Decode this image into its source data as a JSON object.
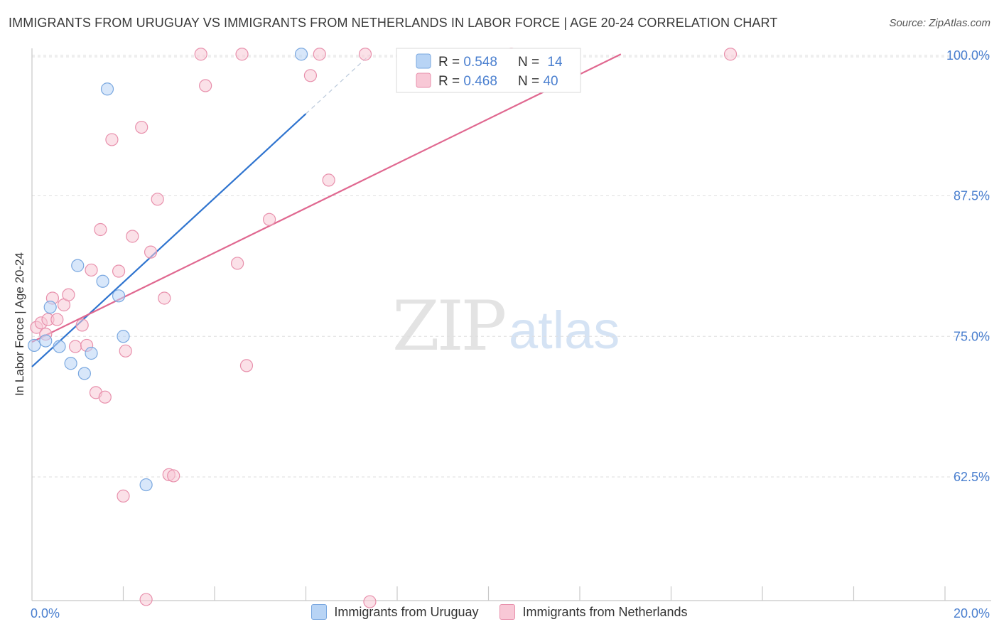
{
  "header": {
    "title": "IMMIGRANTS FROM URUGUAY VS IMMIGRANTS FROM NETHERLANDS IN LABOR FORCE | AGE 20-24 CORRELATION CHART",
    "source": "Source: ZipAtlas.com"
  },
  "watermark": {
    "zip": "ZIP",
    "atlas": "atlas"
  },
  "colors": {
    "uruguay_fill": "#b8d4f5",
    "uruguay_stroke": "#7aa8e0",
    "uruguay_line": "#2f74cf",
    "netherlands_fill": "#f8c8d6",
    "netherlands_stroke": "#e890ac",
    "netherlands_line": "#e06890",
    "axis_text": "#4a7fcf"
  },
  "legend": {
    "rows": [
      {
        "r_label": "R = ",
        "r_value": "0.548",
        "n_label": "N = ",
        "n_value": "14"
      },
      {
        "r_label": "R = ",
        "r_value": "0.468",
        "n_label": "N = ",
        "n_value": "40"
      }
    ]
  },
  "chart_data": {
    "type": "scatter",
    "title": "IMMIGRANTS FROM URUGUAY VS IMMIGRANTS FROM NETHERLANDS IN LABOR FORCE | AGE 20-24 CORRELATION CHART",
    "xlabel": "",
    "ylabel": "In Labor Force | Age 20-24",
    "xlim": [
      0,
      20
    ],
    "ylim": [
      51.5,
      101
    ],
    "x_tick_labels": [
      "0.0%",
      "20.0%"
    ],
    "y_ticks": [
      62.5,
      75.0,
      87.5,
      100.0
    ],
    "y_tick_labels": [
      "62.5%",
      "75.0%",
      "87.5%",
      "100.0%"
    ],
    "grid": true,
    "legend_position": "top-center",
    "series": [
      {
        "name": "Immigrants from Uruguay",
        "r": 0.548,
        "n": 14,
        "points": [
          [
            0.05,
            74.2
          ],
          [
            0.3,
            74.6
          ],
          [
            0.4,
            77.6
          ],
          [
            0.6,
            74.1
          ],
          [
            0.85,
            72.6
          ],
          [
            1.0,
            81.3
          ],
          [
            1.15,
            71.7
          ],
          [
            1.3,
            73.5
          ],
          [
            1.55,
            79.9
          ],
          [
            1.65,
            97.0
          ],
          [
            1.9,
            78.6
          ],
          [
            2.0,
            75.0
          ],
          [
            2.5,
            61.8
          ],
          [
            5.9,
            100.1
          ]
        ],
        "trend": {
          "x0": 0.0,
          "y0": 72.3,
          "x1": 6.0,
          "y1": 94.8,
          "dash_to_x": 7.4
        }
      },
      {
        "name": "Immigrants from Netherlands",
        "r": 0.468,
        "n": 40,
        "points": [
          [
            0.1,
            75.8
          ],
          [
            0.2,
            76.2
          ],
          [
            0.3,
            75.2
          ],
          [
            0.35,
            76.5
          ],
          [
            0.45,
            78.4
          ],
          [
            0.55,
            76.5
          ],
          [
            0.7,
            77.8
          ],
          [
            0.8,
            78.7
          ],
          [
            0.95,
            74.1
          ],
          [
            1.1,
            76.0
          ],
          [
            1.2,
            74.2
          ],
          [
            1.3,
            80.9
          ],
          [
            1.4,
            70.0
          ],
          [
            1.5,
            84.5
          ],
          [
            1.6,
            69.6
          ],
          [
            1.75,
            92.5
          ],
          [
            1.9,
            80.8
          ],
          [
            2.0,
            60.8
          ],
          [
            2.05,
            73.7
          ],
          [
            2.2,
            83.9
          ],
          [
            2.4,
            93.6
          ],
          [
            2.5,
            51.6
          ],
          [
            2.6,
            82.5
          ],
          [
            2.75,
            87.2
          ],
          [
            2.9,
            78.4
          ],
          [
            3.0,
            62.7
          ],
          [
            3.1,
            62.6
          ],
          [
            3.7,
            100.1
          ],
          [
            3.8,
            97.3
          ],
          [
            4.5,
            81.5
          ],
          [
            4.6,
            100.1
          ],
          [
            4.7,
            72.4
          ],
          [
            5.2,
            85.4
          ],
          [
            6.1,
            98.2
          ],
          [
            6.3,
            100.1
          ],
          [
            6.5,
            88.9
          ],
          [
            7.4,
            51.4
          ],
          [
            7.3,
            100.1
          ],
          [
            10.5,
            100.1
          ],
          [
            15.3,
            100.1
          ]
        ],
        "trend": {
          "x0": 0.0,
          "y0": 74.5,
          "x1": 12.9,
          "y1": 100.1
        }
      }
    ]
  }
}
